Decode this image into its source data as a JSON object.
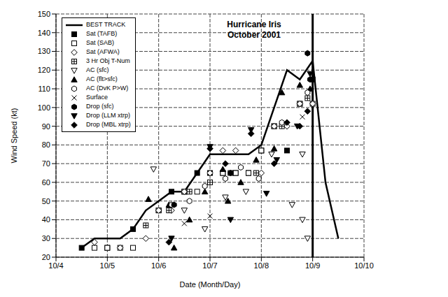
{
  "chart_data": {
    "type": "scatter",
    "title": "Hurricane Iris",
    "subtitle": "October 2001",
    "x_label": "Date (Month/Day)",
    "y_label": "Wind Speed (kt)",
    "xlim": [
      4,
      10
    ],
    "xticks": [
      {
        "value": 4,
        "label": "10/4"
      },
      {
        "value": 5,
        "label": "10/5"
      },
      {
        "value": 6,
        "label": "10/6"
      },
      {
        "value": 7,
        "label": "10/7"
      },
      {
        "value": 8,
        "label": "10/8"
      },
      {
        "value": 9,
        "label": "10/9"
      },
      {
        "value": 10,
        "label": "10/10"
      }
    ],
    "ylim": [
      20,
      150
    ],
    "yticks": [
      20,
      30,
      40,
      50,
      60,
      70,
      80,
      90,
      100,
      110,
      120,
      130,
      140,
      150
    ],
    "grid": true,
    "legend": "upper left",
    "reference_lines": [
      {
        "x": 9
      }
    ],
    "series": [
      {
        "name": "BEST TRACK",
        "type": "line",
        "color": "#000000",
        "line_style": "solid",
        "x": [
          4.5,
          4.75,
          5.0,
          5.25,
          5.5,
          5.75,
          6.0,
          6.25,
          6.5,
          6.75,
          7.0,
          7.25,
          7.5,
          7.75,
          8.0,
          8.25,
          8.5,
          8.75,
          9.0,
          9.25,
          9.5
        ],
        "values": [
          25,
          30,
          30,
          30,
          35,
          45,
          50,
          55,
          55,
          65,
          75,
          75,
          75,
          75,
          80,
          100,
          120,
          115,
          125,
          60,
          30
        ]
      },
      {
        "name": "Sat (TAFB)",
        "type": "scatter",
        "marker": "square-filled",
        "color": "#000000",
        "x": [
          4.5,
          5.0,
          5.5,
          6.0,
          6.25,
          6.5,
          6.75,
          7.0,
          7.25,
          7.5,
          7.75,
          8.0,
          8.25,
          8.5,
          8.75,
          9.0
        ],
        "values": [
          25,
          25,
          35,
          45,
          55,
          55,
          65,
          65,
          65,
          65,
          65,
          77,
          90,
          77,
          102,
          115
        ]
      },
      {
        "name": "Sat (SAB)",
        "type": "scatter",
        "marker": "square-open",
        "color": "#000000",
        "x": [
          4.75,
          5.0,
          5.25,
          5.5,
          6.0,
          6.5,
          6.75,
          7.25,
          7.5,
          7.75,
          8.0,
          8.25,
          8.75,
          9.0
        ],
        "values": [
          25,
          25,
          25,
          25,
          45,
          55,
          55,
          65,
          65,
          65,
          77,
          90,
          102,
          102
        ]
      },
      {
        "name": "Sat (AFWA)",
        "type": "scatter",
        "marker": "diamond-open",
        "color": "#000000",
        "x": [
          4.75,
          5.25,
          5.75,
          6.0,
          6.25,
          6.5,
          7.0,
          7.25,
          7.5,
          8.0,
          8.25,
          8.5,
          8.75,
          9.0
        ],
        "values": [
          28,
          25,
          30,
          45,
          45,
          55,
          65,
          77,
          77,
          65,
          90,
          90,
          102,
          102
        ]
      },
      {
        "name": "3 Hr Obj T-Num",
        "type": "scatter",
        "marker": "crossed-square",
        "color": "#000000",
        "x": [
          5.75,
          6.2,
          6.6,
          7.0,
          7.4,
          7.9,
          8.4,
          8.9
        ],
        "values": [
          37,
          45,
          55,
          60,
          65,
          65,
          90,
          105
        ]
      },
      {
        "name": "AC (sfc)",
        "type": "scatter",
        "marker": "triangle-down-open",
        "color": "#000000",
        "x": [
          5.9,
          6.5,
          6.9,
          7.3,
          7.7,
          8.2,
          8.6,
          8.8,
          8.9,
          8.8
        ],
        "values": [
          67,
          45,
          35,
          52,
          55,
          75,
          48,
          40,
          30,
          75
        ]
      },
      {
        "name": "AC (flt>sfc)",
        "type": "scatter",
        "marker": "triangle-filled",
        "color": "#000000",
        "x": [
          5.8,
          6.2,
          6.3,
          6.6,
          6.9,
          7.25,
          7.35,
          7.6,
          7.9,
          8.25,
          8.4,
          8.75,
          8.95
        ],
        "values": [
          51,
          48,
          25,
          40,
          55,
          67,
          50,
          60,
          72,
          78,
          108,
          112,
          110
        ]
      },
      {
        "name": "AC (DvK P>W)",
        "type": "scatter",
        "marker": "hexagon-open",
        "color": "#000000",
        "x": [
          6.25,
          6.6,
          6.9,
          7.3,
          7.6,
          7.95,
          8.4,
          8.9
        ],
        "values": [
          48,
          50,
          58,
          62,
          68,
          62,
          92,
          108
        ]
      },
      {
        "name": "Surface",
        "type": "scatter",
        "marker": "x",
        "color": "#000000",
        "x": [
          6.5,
          7.0,
          8.8
        ],
        "values": [
          38,
          42,
          95
        ]
      },
      {
        "name": "Drop (sfc)",
        "type": "scatter",
        "marker": "hexagon-filled",
        "color": "#000000",
        "x": [
          6.3,
          7.4,
          8.9,
          8.95
        ],
        "values": [
          48,
          65,
          129,
          115
        ]
      },
      {
        "name": "Drop (LLM xtrp)",
        "type": "scatter",
        "marker": "triangle-down-filled",
        "color": "#000000",
        "x": [
          6.25,
          7.0,
          7.4,
          7.8,
          8.1,
          8.3,
          8.7,
          8.95
        ],
        "values": [
          30,
          79,
          40,
          88,
          54,
          72,
          90,
          118
        ]
      },
      {
        "name": "Drop (MBL xtrp)",
        "type": "scatter",
        "marker": "diamond-filled",
        "color": "#000000",
        "x": [
          6.2,
          7.0,
          7.3,
          7.8,
          8.25,
          8.5,
          8.75,
          8.9
        ],
        "values": [
          28,
          78,
          70,
          86,
          70,
          92,
          90,
          98
        ]
      }
    ]
  }
}
